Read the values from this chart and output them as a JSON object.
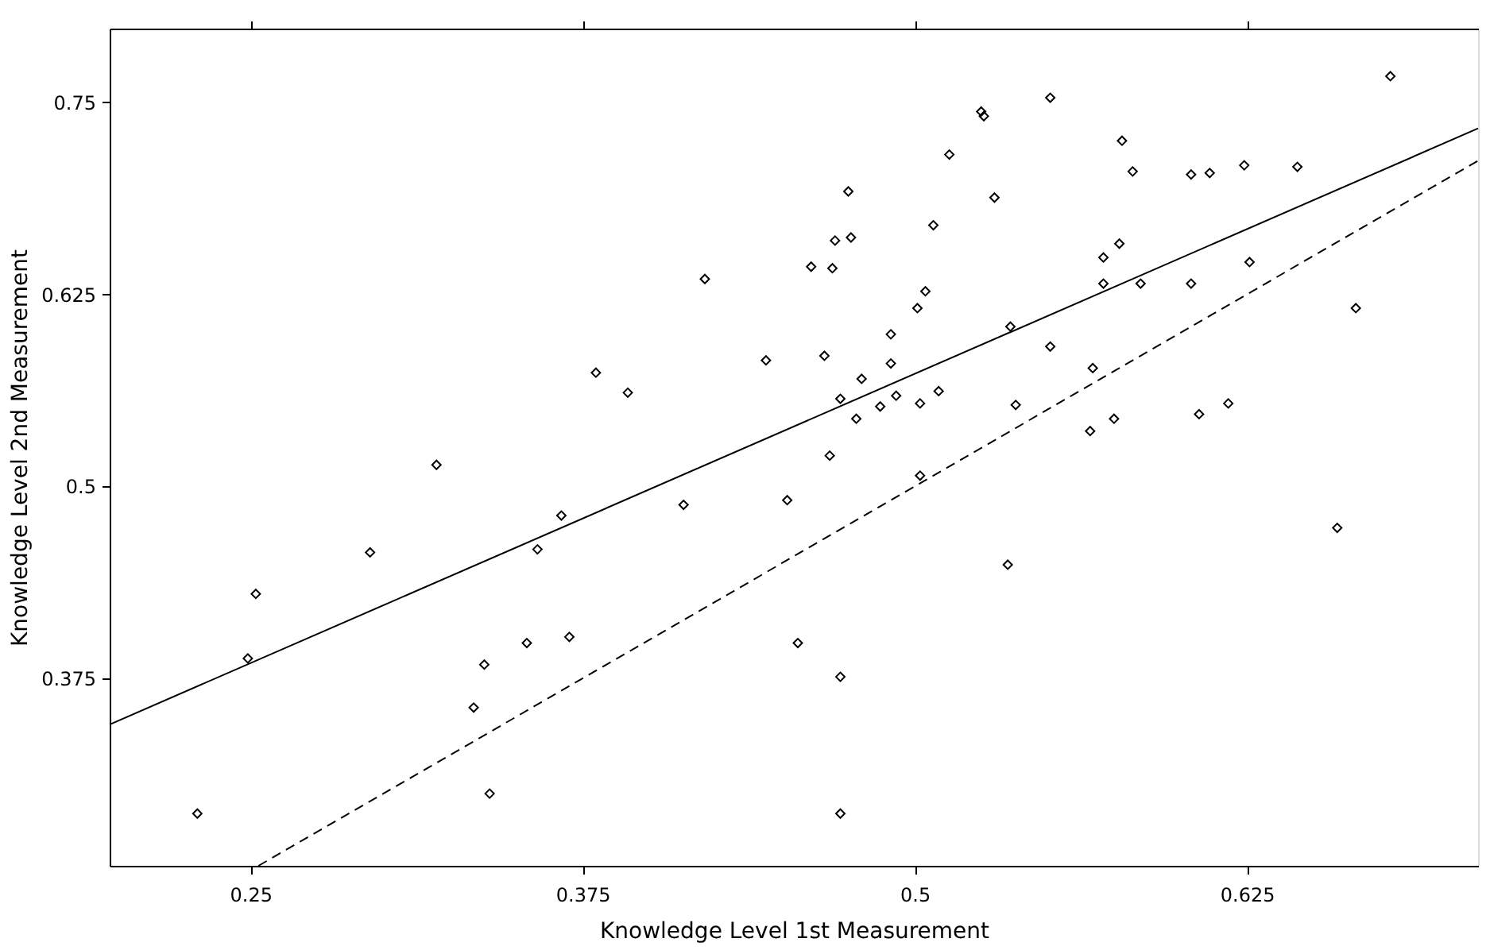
{
  "chart_data": {
    "type": "scatter",
    "xlabel": "Knowledge Level 1st Measurement",
    "ylabel": "Knowledge Level 2nd Measurement",
    "xlim": [
      0.197,
      0.712
    ],
    "ylim": [
      0.253,
      0.798
    ],
    "xticks": [
      0.25,
      0.375,
      0.5,
      0.625
    ],
    "yticks": [
      0.375,
      0.5,
      0.625,
      0.75
    ],
    "grid": false,
    "series": [
      {
        "color": "#000000",
        "marker": "diamond",
        "x": [
          0.23,
          0.249,
          0.252,
          0.295,
          0.32,
          0.334,
          0.338,
          0.34,
          0.354,
          0.358,
          0.367,
          0.37,
          0.38,
          0.392,
          0.413,
          0.421,
          0.444,
          0.452,
          0.456,
          0.461,
          0.466,
          0.468,
          0.469,
          0.47,
          0.472,
          0.472,
          0.472,
          0.475,
          0.476,
          0.478,
          0.48,
          0.487,
          0.491,
          0.491,
          0.493,
          0.501,
          0.502,
          0.502,
          0.504,
          0.507,
          0.509,
          0.513,
          0.525,
          0.526,
          0.53,
          0.535,
          0.536,
          0.538,
          0.551,
          0.551,
          0.566,
          0.567,
          0.571,
          0.571,
          0.575,
          0.577,
          0.578,
          0.582,
          0.585,
          0.604,
          0.604,
          0.607,
          0.611,
          0.618,
          0.624,
          0.626,
          0.644,
          0.659,
          0.666,
          0.679
        ],
        "values": [
          0.287,
          0.388,
          0.43,
          0.457,
          0.514,
          0.356,
          0.384,
          0.3,
          0.398,
          0.459,
          0.481,
          0.402,
          0.574,
          0.561,
          0.488,
          0.635,
          0.582,
          0.491,
          0.398,
          0.643,
          0.585,
          0.52,
          0.642,
          0.66,
          0.557,
          0.376,
          0.287,
          0.692,
          0.662,
          0.544,
          0.57,
          0.552,
          0.58,
          0.599,
          0.559,
          0.616,
          0.507,
          0.554,
          0.627,
          0.67,
          0.562,
          0.716,
          0.744,
          0.741,
          0.688,
          0.449,
          0.604,
          0.553,
          0.753,
          0.591,
          0.536,
          0.577,
          0.632,
          0.649,
          0.544,
          0.658,
          0.725,
          0.705,
          0.632,
          0.703,
          0.632,
          0.547,
          0.704,
          0.554,
          0.709,
          0.646,
          0.708,
          0.473,
          0.616,
          0.767
        ]
      },
      {
        "type": "line",
        "color": "#000000",
        "line_style": "solid",
        "x": [
          0.197,
          0.712
        ],
        "values": [
          0.345,
          0.733
        ]
      },
      {
        "type": "line",
        "color": "#000000",
        "line_style": "dashed",
        "x": [
          0.253,
          0.712
        ],
        "values": [
          0.253,
          0.712
        ]
      }
    ]
  }
}
